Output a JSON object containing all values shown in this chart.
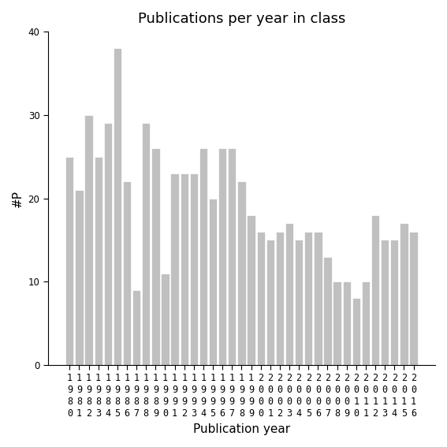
{
  "title": "Publications per year in class",
  "xlabel": "Publication year",
  "ylabel": "#P",
  "years": [
    1980,
    1981,
    1982,
    1983,
    1984,
    1985,
    1986,
    1987,
    1988,
    1989,
    1990,
    1991,
    1992,
    1993,
    1994,
    1995,
    1996,
    1997,
    1998,
    1999,
    2000,
    2001,
    2002,
    2003,
    2004,
    2005,
    2006,
    2007,
    2008,
    2009,
    2010,
    2011,
    2012,
    2013,
    2014,
    2015,
    2016
  ],
  "values": [
    25,
    21,
    30,
    25,
    29,
    38,
    22,
    9,
    29,
    26,
    11,
    23,
    23,
    23,
    26,
    20,
    26,
    26,
    22,
    18,
    16,
    15,
    16,
    17,
    15,
    16,
    16,
    13,
    10,
    10,
    8,
    10,
    18,
    15,
    15,
    17,
    16
  ],
  "bar_color": "#c0c0c0",
  "bar_edge_color": "#ffffff",
  "ylim": [
    0,
    40
  ],
  "yticks": [
    0,
    10,
    20,
    30,
    40
  ],
  "background_color": "#ffffff",
  "title_fontsize": 13,
  "axis_label_fontsize": 11,
  "tick_fontsize": 8.5
}
